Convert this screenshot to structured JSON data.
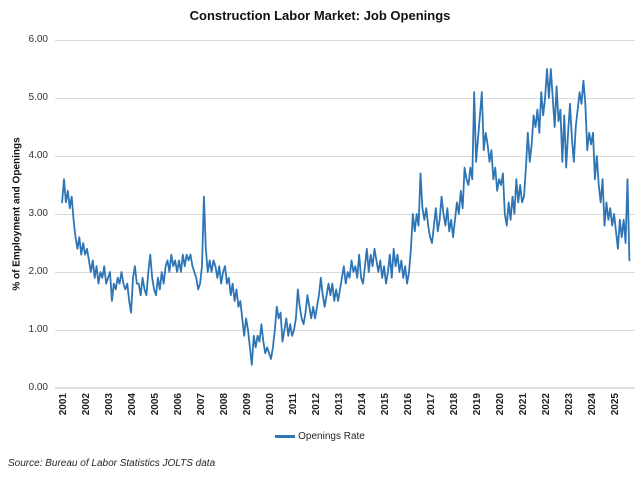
{
  "source_note": "Source: Bureau of Labor Statistics JOLTS data",
  "colors": {
    "line": "#2E75B6",
    "gridline": "#D9D9D9",
    "axis_line": "#BFBFBF",
    "text": "#262626"
  },
  "chart_data": {
    "type": "line",
    "title": "Construction Labor Market: Job Openings",
    "xlabel": "",
    "ylabel": "% of Employment and Openings",
    "ylim": [
      0,
      6
    ],
    "yticks": [
      "0.00",
      "1.00",
      "2.00",
      "3.00",
      "4.00",
      "5.00",
      "6.00"
    ],
    "xticks": [
      "2001",
      "2002",
      "2003",
      "2004",
      "2005",
      "2006",
      "2007",
      "2008",
      "2009",
      "2010",
      "2011",
      "2012",
      "2013",
      "2014",
      "2015",
      "2016",
      "2017",
      "2018",
      "2019",
      "2020",
      "2021",
      "2022",
      "2023",
      "2024",
      "2025"
    ],
    "grid": "horizontal",
    "legend_position": "bottom",
    "series": [
      {
        "name": "Openings Rate",
        "color": "#2E75B6",
        "start": "2000-12",
        "frequency": "monthly",
        "values": [
          3.2,
          3.6,
          3.2,
          3.4,
          3.1,
          3.3,
          2.9,
          2.6,
          2.4,
          2.6,
          2.3,
          2.5,
          2.3,
          2.4,
          2.2,
          2.0,
          2.2,
          1.9,
          2.1,
          1.8,
          2.0,
          1.9,
          2.1,
          1.8,
          1.9,
          2.0,
          1.5,
          1.8,
          1.7,
          1.9,
          1.8,
          2.0,
          1.8,
          1.7,
          1.8,
          1.5,
          1.3,
          1.9,
          2.1,
          1.8,
          1.8,
          1.6,
          1.9,
          1.7,
          1.6,
          2.0,
          2.3,
          1.9,
          1.7,
          1.6,
          1.9,
          1.7,
          2.0,
          1.8,
          2.1,
          2.2,
          2.0,
          2.3,
          2.1,
          2.2,
          2.0,
          2.2,
          2.0,
          2.3,
          2.1,
          2.3,
          2.2,
          2.3,
          2.1,
          2.0,
          1.9,
          1.7,
          1.8,
          2.1,
          3.3,
          2.4,
          2.0,
          2.2,
          2.0,
          2.2,
          2.1,
          1.9,
          2.1,
          1.8,
          2.0,
          2.1,
          1.8,
          1.9,
          1.6,
          1.8,
          1.5,
          1.7,
          1.4,
          1.5,
          1.2,
          0.9,
          1.2,
          1.0,
          0.7,
          0.4,
          0.9,
          0.7,
          0.9,
          0.8,
          1.1,
          0.8,
          0.6,
          0.7,
          0.6,
          0.5,
          0.7,
          1.0,
          1.4,
          1.2,
          1.3,
          0.8,
          1.0,
          1.2,
          0.9,
          1.1,
          0.9,
          1.0,
          1.2,
          1.7,
          1.4,
          1.2,
          1.1,
          1.3,
          1.6,
          1.4,
          1.2,
          1.4,
          1.2,
          1.4,
          1.6,
          1.9,
          1.6,
          1.4,
          1.6,
          1.8,
          1.6,
          1.8,
          1.5,
          1.7,
          1.5,
          1.7,
          1.9,
          2.1,
          1.8,
          2.0,
          1.9,
          2.2,
          2.0,
          2.1,
          1.9,
          2.3,
          1.9,
          1.8,
          2.1,
          2.4,
          2.0,
          2.3,
          2.1,
          2.4,
          2.2,
          2.0,
          2.2,
          1.9,
          2.1,
          1.8,
          2.0,
          2.3,
          1.9,
          2.4,
          2.1,
          2.3,
          2.0,
          2.2,
          1.9,
          2.1,
          1.8,
          2.0,
          2.4,
          3.0,
          2.7,
          3.0,
          2.8,
          3.7,
          3.1,
          2.9,
          3.1,
          2.8,
          2.6,
          2.5,
          2.8,
          3.1,
          2.7,
          2.9,
          3.3,
          3.0,
          2.8,
          3.1,
          2.7,
          2.9,
          2.6,
          2.9,
          3.2,
          3.0,
          3.4,
          3.1,
          3.8,
          3.6,
          3.5,
          3.8,
          3.6,
          5.1,
          3.9,
          4.3,
          4.7,
          5.1,
          4.1,
          4.4,
          4.2,
          3.9,
          4.1,
          3.6,
          3.8,
          3.4,
          3.6,
          3.5,
          3.7,
          3.0,
          2.8,
          3.2,
          2.9,
          3.3,
          3.0,
          3.6,
          3.2,
          3.5,
          3.2,
          3.3,
          3.8,
          4.4,
          3.9,
          4.2,
          4.7,
          4.5,
          4.8,
          4.4,
          5.1,
          4.7,
          5.0,
          5.5,
          5.0,
          5.5,
          5.0,
          4.5,
          5.2,
          4.6,
          4.8,
          3.9,
          4.7,
          3.8,
          4.4,
          4.9,
          4.3,
          3.9,
          4.5,
          4.8,
          5.1,
          4.9,
          5.3,
          4.9,
          4.1,
          4.4,
          4.2,
          4.4,
          3.6,
          4.0,
          3.5,
          3.2,
          3.6,
          2.8,
          3.2,
          2.9,
          3.1,
          2.8,
          3.0,
          2.7,
          2.4,
          2.9,
          2.6,
          2.9,
          2.5,
          3.6,
          2.2
        ]
      }
    ]
  }
}
